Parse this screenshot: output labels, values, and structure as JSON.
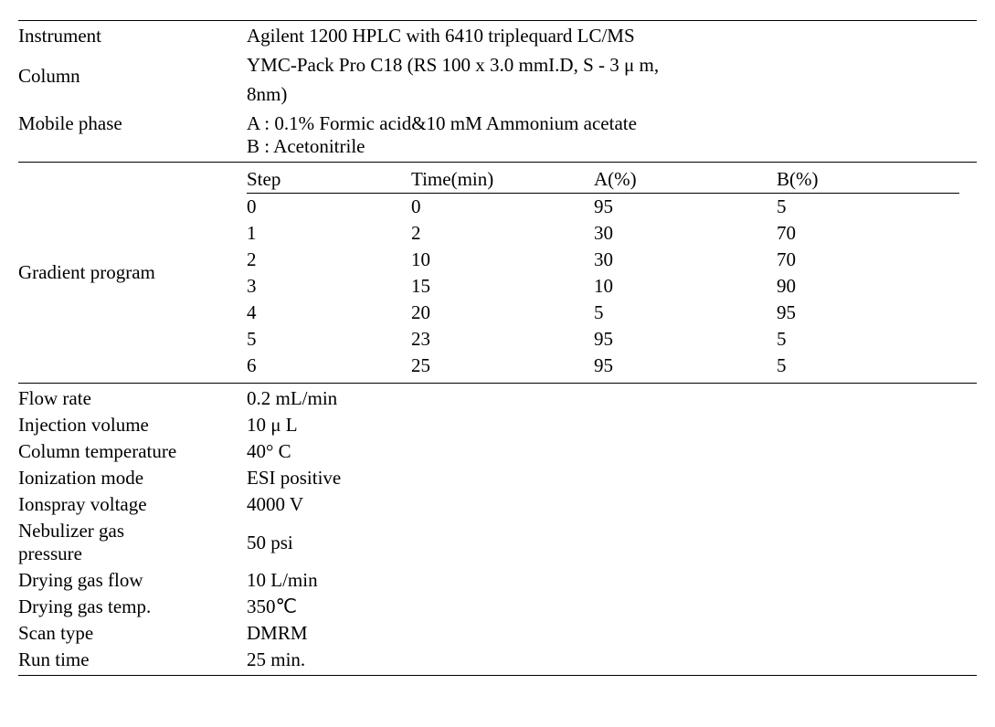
{
  "labels": {
    "instrument": "Instrument",
    "column": "Column",
    "mobile_phase": "Mobile phase",
    "gradient_program": "Gradient program",
    "flow_rate": "Flow rate",
    "injection_volume": "Injection volume",
    "column_temperature": "Column temperature",
    "ionization_mode": "Ionization mode",
    "ionspray_voltage": "Ionspray voltage",
    "nebulizer_gas_pressure_l1": "Nebulizer gas",
    "nebulizer_gas_pressure_l2": "pressure",
    "drying_gas_flow": "Drying gas flow",
    "drying_gas_temp": "Drying gas temp.",
    "scan_type": "Scan type",
    "run_time": "Run time"
  },
  "values": {
    "instrument": "Agilent 1200 HPLC with 6410 triplequard LC/MS",
    "column_l1": "YMC-Pack Pro  C18 (RS 100 x 3.0 mmI.D, S - 3 μ m,",
    "column_l2": "8nm)",
    "mobile_phase_a": "A : 0.1% Formic acid&10 mM Ammonium acetate",
    "mobile_phase_b": "B : Acetonitrile",
    "flow_rate": "0.2 mL/min",
    "injection_volume": "10 μ L",
    "column_temperature": "40° C",
    "ionization_mode": "ESI positive",
    "ionspray_voltage": "4000 V",
    "nebulizer_gas_pressure": "50 psi",
    "drying_gas_flow": "10 L/min",
    "drying_gas_temp": "350℃",
    "scan_type": "DMRM",
    "run_time": "25 min."
  },
  "gradient": {
    "headers": {
      "step": "Step",
      "time": "Time(min)",
      "a": "A(%)",
      "b": "B(%)"
    },
    "rows": [
      {
        "step": "0",
        "time": "0",
        "a": "95",
        "b": "5"
      },
      {
        "step": "1",
        "time": "2",
        "a": "30",
        "b": "70"
      },
      {
        "step": "2",
        "time": "10",
        "a": "30",
        "b": "70"
      },
      {
        "step": "3",
        "time": "15",
        "a": "10",
        "b": "90"
      },
      {
        "step": "4",
        "time": "20",
        "a": "5",
        "b": "95"
      },
      {
        "step": "5",
        "time": "23",
        "a": "95",
        "b": "5"
      },
      {
        "step": "6",
        "time": "25",
        "a": "95",
        "b": "5"
      }
    ]
  }
}
